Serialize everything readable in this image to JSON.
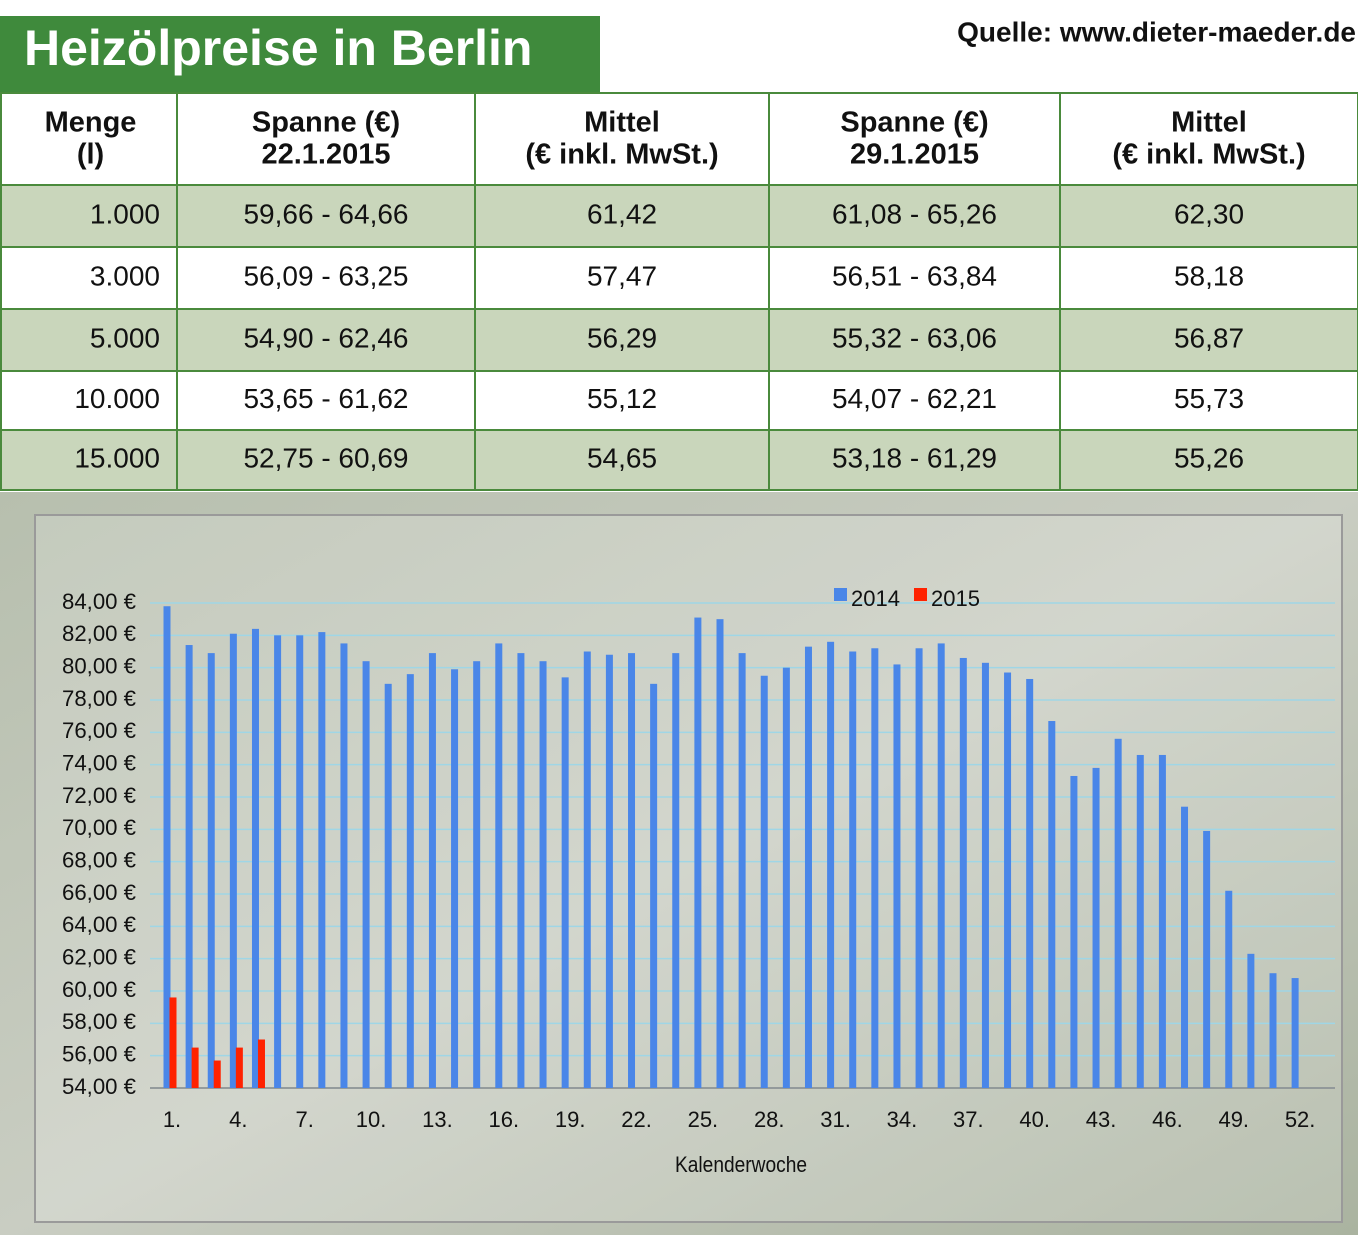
{
  "header": {
    "title": "Heizölpreise in Berlin",
    "source": "Quelle: www.dieter-maeder.de"
  },
  "table": {
    "columns": [
      [
        "Menge",
        "(l)"
      ],
      [
        "Spanne (€)",
        "22.1.2015"
      ],
      [
        "Mittel",
        "(€ inkl. MwSt.)"
      ],
      [
        "Spanne (€)",
        "29.1.2015"
      ],
      [
        "Mittel",
        "(€ inkl. MwSt.)"
      ]
    ],
    "rows": [
      [
        "1.000",
        "59,66 - 64,66",
        "61,42",
        "61,08 - 65,26",
        "62,30"
      ],
      [
        "3.000",
        "56,09 - 63,25",
        "57,47",
        "56,51 - 63,84",
        "58,18"
      ],
      [
        "5.000",
        "54,90 - 62,46",
        "56,29",
        "55,32 - 63,06",
        "56,87"
      ],
      [
        "10.000",
        "53,65 - 61,62",
        "55,12",
        "54,07 - 62,21",
        "55,73"
      ],
      [
        "15.000",
        "52,75 - 60,69",
        "54,65",
        "53,18 - 61,29",
        "55,26"
      ]
    ]
  },
  "chart_data": {
    "type": "bar",
    "x_label": "Kalenderwoche",
    "categories": [
      "1.",
      null,
      null,
      "4.",
      null,
      null,
      "7.",
      null,
      null,
      "10.",
      null,
      null,
      "13.",
      null,
      null,
      "16.",
      null,
      null,
      "19.",
      null,
      null,
      "22.",
      null,
      null,
      "25.",
      null,
      null,
      "28.",
      null,
      null,
      "31.",
      null,
      null,
      "34.",
      null,
      null,
      "37.",
      null,
      null,
      "40.",
      null,
      null,
      "43.",
      null,
      null,
      "46.",
      null,
      null,
      "49.",
      null,
      null,
      "52."
    ],
    "series": [
      {
        "name": "2014",
        "color": "#4a86e8",
        "values": [
          83.8,
          81.4,
          80.9,
          82.1,
          82.4,
          82.0,
          82.0,
          82.2,
          81.5,
          80.4,
          79.0,
          79.6,
          80.9,
          79.9,
          80.4,
          81.5,
          80.9,
          80.4,
          79.4,
          81.0,
          80.8,
          80.9,
          79.0,
          80.9,
          83.1,
          83.0,
          80.9,
          79.5,
          80.0,
          81.3,
          81.6,
          81.0,
          81.2,
          80.2,
          81.2,
          81.5,
          80.6,
          80.3,
          79.7,
          79.3,
          76.7,
          73.3,
          73.8,
          75.6,
          74.6,
          74.6,
          71.4,
          69.9,
          66.2,
          62.3,
          61.1,
          60.8
        ]
      },
      {
        "name": "2015",
        "color": "#ff2200",
        "values": [
          59.6,
          56.5,
          55.7,
          56.5,
          57.0,
          null,
          null,
          null,
          null,
          null,
          null,
          null,
          null,
          null,
          null,
          null,
          null,
          null,
          null,
          null,
          null,
          null,
          null,
          null,
          null,
          null,
          null,
          null,
          null,
          null,
          null,
          null,
          null,
          null,
          null,
          null,
          null,
          null,
          null,
          null,
          null,
          null,
          null,
          null,
          null,
          null,
          null,
          null,
          null,
          null,
          null,
          null
        ]
      }
    ],
    "ylim": [
      54,
      84
    ],
    "yticks": [
      {
        "value": 54,
        "label": "54,00 €"
      },
      {
        "value": 56,
        "label": "56,00 €"
      },
      {
        "value": 58,
        "label": "58,00 €"
      },
      {
        "value": 60,
        "label": "60,00 €"
      },
      {
        "value": 62,
        "label": "62,00 €"
      },
      {
        "value": 64,
        "label": "64,00 €"
      },
      {
        "value": 66,
        "label": "66,00 €"
      },
      {
        "value": 68,
        "label": "68,00 €"
      },
      {
        "value": 70,
        "label": "70,00 €"
      },
      {
        "value": 72,
        "label": "72,00 €"
      },
      {
        "value": 74,
        "label": "74,00 €"
      },
      {
        "value": 76,
        "label": "76,00 €"
      },
      {
        "value": 78,
        "label": "78,00 €"
      },
      {
        "value": 80,
        "label": "80,00 €"
      },
      {
        "value": 82,
        "label": "82,00 €"
      },
      {
        "value": 84,
        "label": "84,00 €"
      }
    ],
    "grid": true,
    "legend": "top"
  }
}
